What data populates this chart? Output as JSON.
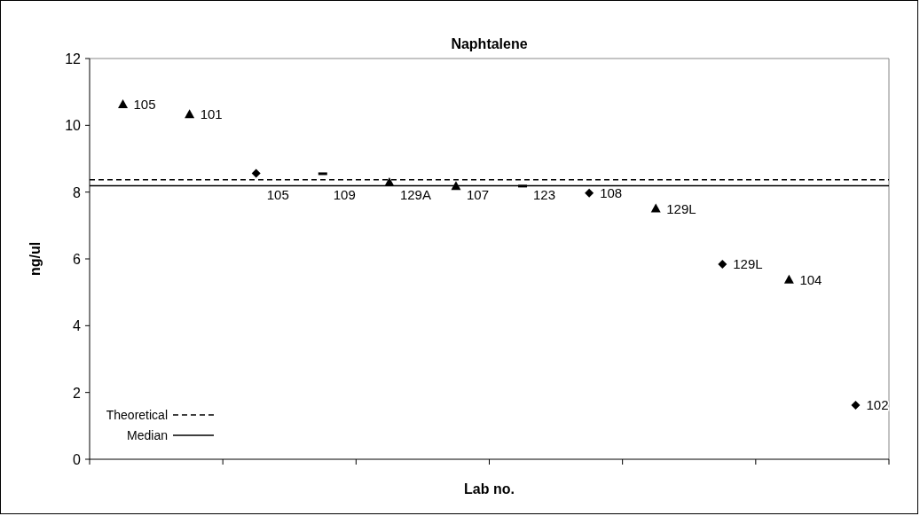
{
  "chart_data": {
    "type": "scatter",
    "title": "Naphtalene",
    "xlabel": "Lab no.",
    "ylabel": "ng/ul",
    "categories": [
      null,
      null,
      null,
      null,
      null,
      null,
      null,
      null,
      null,
      null,
      null,
      null
    ],
    "ylim": [
      0,
      12
    ],
    "yticks": [
      0,
      2,
      4,
      6,
      8,
      10,
      12
    ],
    "grid": false,
    "series": [
      {
        "color": "#000000",
        "marker": "triangle",
        "values": [
          10.62,
          10.32,
          null,
          null,
          8.28,
          8.17,
          null,
          null,
          7.5,
          null,
          5.37,
          null
        ]
      },
      {
        "color": "#000000",
        "marker": "diamond",
        "values": [
          null,
          null,
          8.56,
          null,
          null,
          null,
          null,
          7.97,
          null,
          5.84,
          null,
          1.62
        ]
      },
      {
        "color": "#000000",
        "values": [
          null,
          null,
          null,
          8.55,
          null,
          null,
          8.18,
          null,
          null,
          null,
          null,
          null
        ]
      }
    ],
    "legend": "bottom left",
    "annotations": [
      "105",
      "101",
      "105",
      "109",
      "129A",
      "107",
      "123",
      "108",
      "129L",
      "129L",
      "104",
      "102"
    ],
    "ref_lines": [
      {
        "axis": "y",
        "value": 8.37,
        "label": "Theoretical",
        "line_style": "dashed",
        "color": "#000000"
      },
      {
        "axis": "y",
        "value": 8.19,
        "label": "Median",
        "line_style": "solid",
        "color": "#000000"
      }
    ]
  }
}
